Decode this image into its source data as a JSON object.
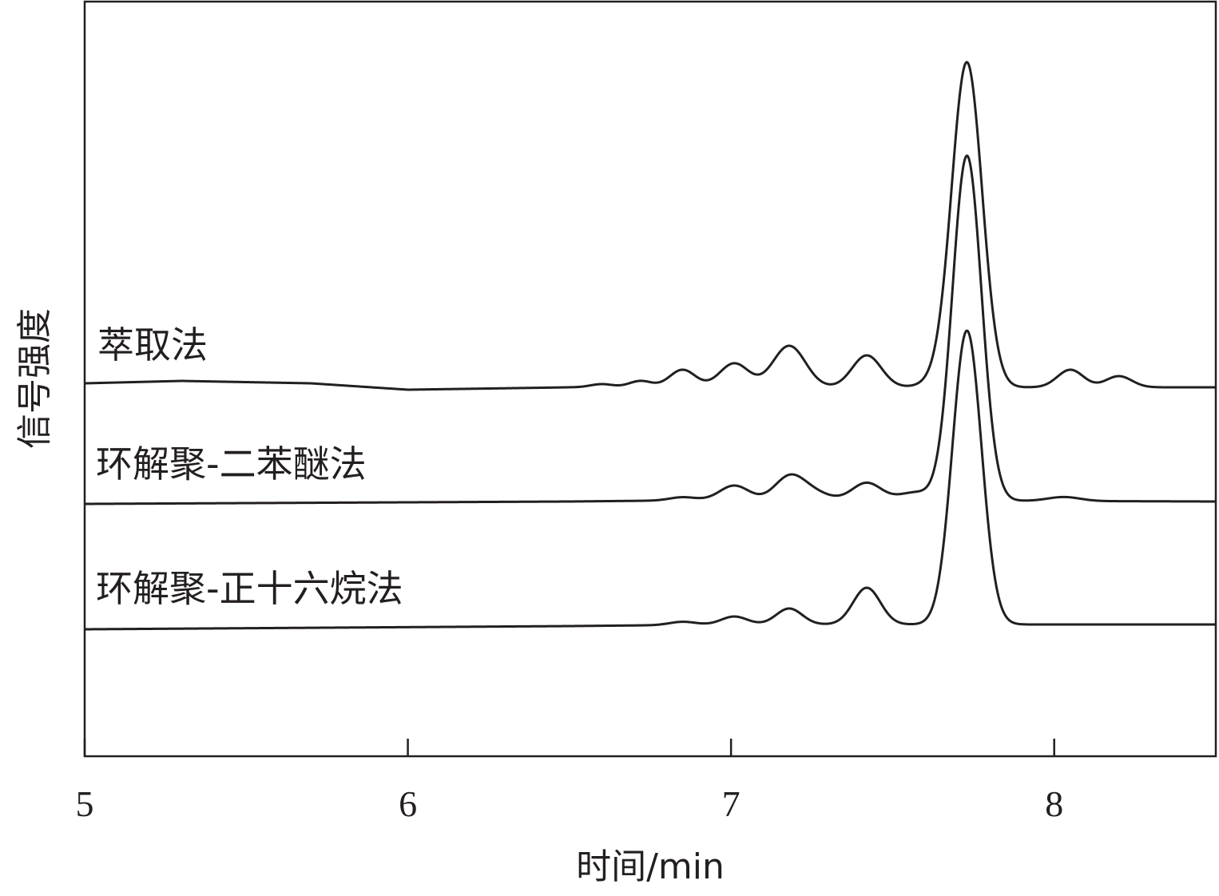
{
  "chart_data": {
    "type": "line",
    "xlabel": "时间/min",
    "ylabel": "信号强度",
    "xlim": [
      5,
      8.5
    ],
    "xticks": [
      5,
      6,
      7,
      8
    ],
    "y_ticks_shown": false,
    "grid": false,
    "series": [
      {
        "name": "萃取法",
        "baseline": 480,
        "drift": [
          [
            5.0,
            0
          ],
          [
            5.3,
            -3
          ],
          [
            5.7,
            0
          ],
          [
            6.0,
            8
          ],
          [
            6.5,
            5
          ],
          [
            8.5,
            5
          ]
        ],
        "peaks": [
          {
            "x": 6.6,
            "h": 4,
            "w": 0.035
          },
          {
            "x": 6.72,
            "h": 8,
            "w": 0.035
          },
          {
            "x": 6.85,
            "h": 22,
            "w": 0.04
          },
          {
            "x": 7.01,
            "h": 30,
            "w": 0.045
          },
          {
            "x": 7.18,
            "h": 52,
            "w": 0.05
          },
          {
            "x": 7.42,
            "h": 40,
            "w": 0.045
          },
          {
            "x": 7.65,
            "h": 8,
            "w": 0.05
          },
          {
            "x": 7.73,
            "h": 405,
            "w": 0.047
          },
          {
            "x": 8.05,
            "h": 22,
            "w": 0.04
          },
          {
            "x": 8.2,
            "h": 14,
            "w": 0.04
          }
        ]
      },
      {
        "name": "环解聚-二苯醚法",
        "baseline": 631,
        "drift": [
          [
            5.0,
            0
          ],
          [
            6.5,
            -3
          ],
          [
            7.0,
            -5
          ],
          [
            8.5,
            -3
          ]
        ],
        "peaks": [
          {
            "x": 6.85,
            "h": 4,
            "w": 0.04
          },
          {
            "x": 7.01,
            "h": 18,
            "w": 0.045
          },
          {
            "x": 7.18,
            "h": 28,
            "w": 0.045
          },
          {
            "x": 7.25,
            "h": 10,
            "w": 0.05
          },
          {
            "x": 7.42,
            "h": 22,
            "w": 0.045
          },
          {
            "x": 7.57,
            "h": 10,
            "w": 0.05
          },
          {
            "x": 7.73,
            "h": 432,
            "w": 0.045
          },
          {
            "x": 8.03,
            "h": 5,
            "w": 0.05
          }
        ]
      },
      {
        "name": "环解聚-正十六烷法",
        "baseline": 788,
        "drift": [
          [
            5.0,
            0
          ],
          [
            6.5,
            -4
          ],
          [
            7.0,
            -6
          ],
          [
            8.5,
            -6
          ]
        ],
        "peaks": [
          {
            "x": 6.85,
            "h": 4,
            "w": 0.04
          },
          {
            "x": 7.01,
            "h": 10,
            "w": 0.04
          },
          {
            "x": 7.18,
            "h": 20,
            "w": 0.04
          },
          {
            "x": 7.42,
            "h": 46,
            "w": 0.042
          },
          {
            "x": 7.73,
            "h": 368,
            "w": 0.045
          }
        ]
      }
    ]
  }
}
